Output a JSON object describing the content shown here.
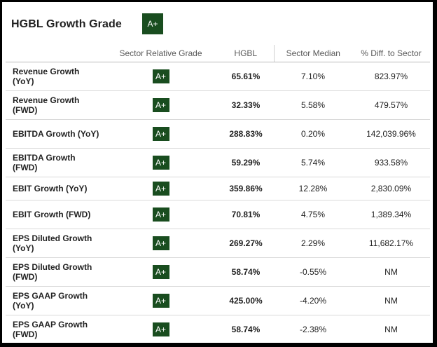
{
  "header": {
    "title": "HGBL Growth Grade",
    "overall_grade": "A+"
  },
  "columns": {
    "sector_relative_grade": "Sector Relative Grade",
    "hgbl": "HGBL",
    "sector_median": "Sector Median",
    "pct_diff": "% Diff. to Sector"
  },
  "colors": {
    "grade_badge_bg": "#194d1f",
    "grade_badge_text": "#ffffff"
  },
  "rows": [
    {
      "metric": "Revenue Growth (YoY)",
      "grade": "A+",
      "hgbl": "65.61%",
      "sector_median": "7.10%",
      "pct_diff": "823.97%"
    },
    {
      "metric": "Revenue Growth (FWD)",
      "grade": "A+",
      "hgbl": "32.33%",
      "sector_median": "5.58%",
      "pct_diff": "479.57%"
    },
    {
      "metric": "EBITDA Growth (YoY)",
      "grade": "A+",
      "hgbl": "288.83%",
      "sector_median": "0.20%",
      "pct_diff": "142,039.96%"
    },
    {
      "metric": "EBITDA Growth (FWD)",
      "grade": "A+",
      "hgbl": "59.29%",
      "sector_median": "5.74%",
      "pct_diff": "933.58%"
    },
    {
      "metric": "EBIT Growth (YoY)",
      "grade": "A+",
      "hgbl": "359.86%",
      "sector_median": "12.28%",
      "pct_diff": "2,830.09%"
    },
    {
      "metric": "EBIT Growth (FWD)",
      "grade": "A+",
      "hgbl": "70.81%",
      "sector_median": "4.75%",
      "pct_diff": "1,389.34%"
    },
    {
      "metric": "EPS Diluted Growth (YoY)",
      "grade": "A+",
      "hgbl": "269.27%",
      "sector_median": "2.29%",
      "pct_diff": "11,682.17%"
    },
    {
      "metric": "EPS Diluted Growth (FWD)",
      "grade": "A+",
      "hgbl": "58.74%",
      "sector_median": "-0.55%",
      "pct_diff": "NM"
    },
    {
      "metric": "EPS GAAP Growth (YoY)",
      "grade": "A+",
      "hgbl": "425.00%",
      "sector_median": "-4.20%",
      "pct_diff": "NM"
    },
    {
      "metric": "EPS GAAP Growth (FWD)",
      "grade": "A+",
      "hgbl": "58.74%",
      "sector_median": "-2.38%",
      "pct_diff": "NM"
    }
  ]
}
